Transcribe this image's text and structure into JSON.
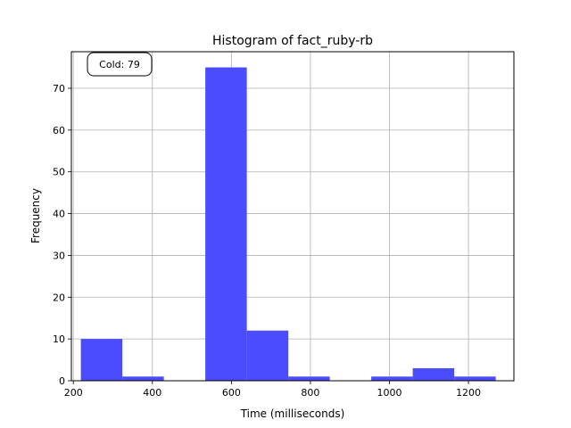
{
  "chart_data": {
    "type": "bar",
    "title": "Histogram of fact_ruby-rb",
    "xlabel": "Time (milliseconds)",
    "ylabel": "Frequency",
    "xlim": [
      195,
      1315
    ],
    "ylim": [
      0,
      78.75
    ],
    "xticks": [
      200,
      400,
      600,
      800,
      1000,
      1200
    ],
    "yticks": [
      0,
      10,
      20,
      30,
      40,
      50,
      60,
      70
    ],
    "grid": true,
    "bar_color": "#4b4bff",
    "bins": [
      {
        "x0": 219,
        "x1": 324,
        "count": 10
      },
      {
        "x0": 324,
        "x1": 429,
        "count": 1
      },
      {
        "x0": 429,
        "x1": 534,
        "count": 0
      },
      {
        "x0": 534,
        "x1": 639,
        "count": 75
      },
      {
        "x0": 639,
        "x1": 744,
        "count": 12
      },
      {
        "x0": 744,
        "x1": 849,
        "count": 1
      },
      {
        "x0": 849,
        "x1": 954,
        "count": 0
      },
      {
        "x0": 954,
        "x1": 1059,
        "count": 1
      },
      {
        "x0": 1059,
        "x1": 1164,
        "count": 3
      },
      {
        "x0": 1164,
        "x1": 1269,
        "count": 1
      }
    ],
    "annotation": "Cold: 79"
  }
}
